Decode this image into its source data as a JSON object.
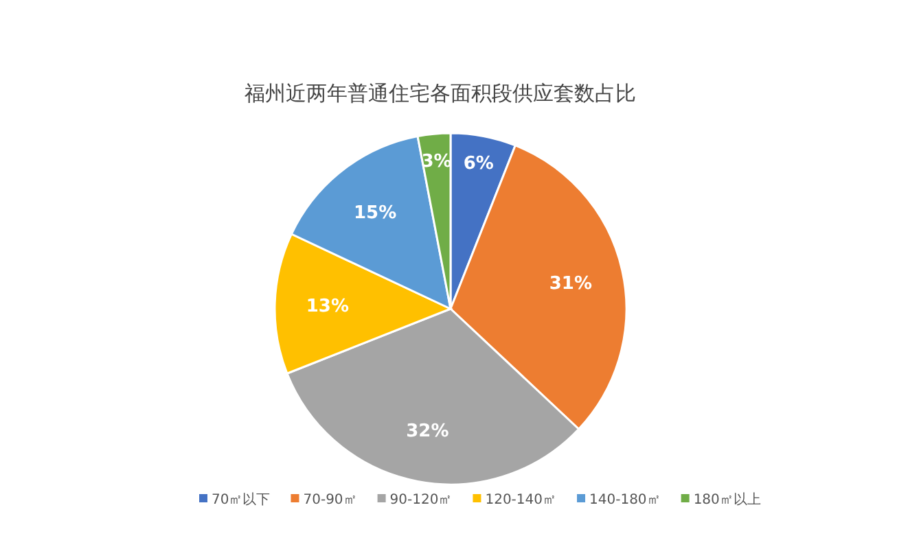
{
  "chart_data": {
    "type": "pie",
    "title": "福州近两年普通住宅各面积段供应套数占比",
    "categories": [
      "70㎡以下",
      "70-90㎡",
      "90-120㎡",
      "120-140㎡",
      "140-180㎡",
      "180㎡以上"
    ],
    "values": [
      6,
      31,
      32,
      13,
      15,
      3
    ],
    "colors": [
      "#4472c4",
      "#ed7d31",
      "#a5a5a5",
      "#ffc000",
      "#5b9bd5",
      "#70ad47"
    ],
    "value_labels": [
      "6%",
      "31%",
      "32%",
      "13%",
      "15%",
      "3%"
    ],
    "legend": "bottom"
  }
}
